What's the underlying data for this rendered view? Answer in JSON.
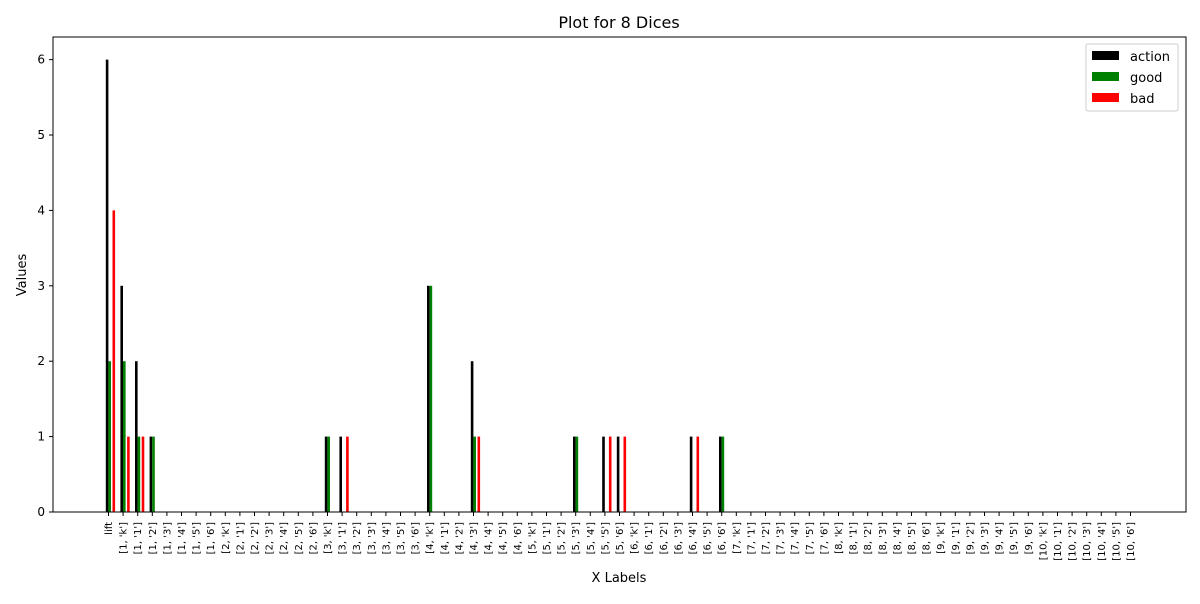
{
  "chart_data": {
    "type": "bar",
    "title": "Plot for 8 Dices",
    "xlabel": "X Labels",
    "ylabel": "Values",
    "ylim": [
      0,
      6.3
    ],
    "yticks": [
      0,
      1,
      2,
      3,
      4,
      5,
      6
    ],
    "grid": false,
    "legend_position": "top-right",
    "categories": [
      "lift",
      "[1, 'k']",
      "[1, '1']",
      "[1, '2']",
      "[1, '3']",
      "[1, '4']",
      "[1, '5']",
      "[1, '6']",
      "[2, 'k']",
      "[2, '1']",
      "[2, '2']",
      "[2, '3']",
      "[2, '4']",
      "[2, '5']",
      "[2, '6']",
      "[3, 'k']",
      "[3, '1']",
      "[3, '2']",
      "[3, '3']",
      "[3, '4']",
      "[3, '5']",
      "[3, '6']",
      "[4, 'k']",
      "[4, '1']",
      "[4, '2']",
      "[4, '3']",
      "[4, '4']",
      "[4, '5']",
      "[4, '6']",
      "[5, 'k']",
      "[5, '1']",
      "[5, '2']",
      "[5, '3']",
      "[5, '4']",
      "[5, '5']",
      "[5, '6']",
      "[6, 'k']",
      "[6, '1']",
      "[6, '2']",
      "[6, '3']",
      "[6, '4']",
      "[6, '5']",
      "[6, '6']",
      "[7, 'k']",
      "[7, '1']",
      "[7, '2']",
      "[7, '3']",
      "[7, '4']",
      "[7, '5']",
      "[7, '6']",
      "[8, 'k']",
      "[8, '1']",
      "[8, '2']",
      "[8, '3']",
      "[8, '4']",
      "[8, '5']",
      "[8, '6']",
      "[9, 'k']",
      "[9, '1']",
      "[9, '2']",
      "[9, '3']",
      "[9, '4']",
      "[9, '5']",
      "[9, '6']",
      "[10, 'k']",
      "[10, '1']",
      "[10, '2']",
      "[10, '3']",
      "[10, '4']",
      "[10, '5']",
      "[10, '6']"
    ],
    "series": [
      {
        "name": "action",
        "color": "#000000",
        "values": [
          6,
          3,
          2,
          1,
          0,
          0,
          0,
          0,
          0,
          0,
          0,
          0,
          0,
          0,
          0,
          1,
          1,
          0,
          0,
          0,
          0,
          0,
          3,
          0,
          0,
          2,
          0,
          0,
          0,
          0,
          0,
          0,
          1,
          0,
          1,
          1,
          0,
          0,
          0,
          0,
          1,
          0,
          1,
          0,
          0,
          0,
          0,
          0,
          0,
          0,
          0,
          0,
          0,
          0,
          0,
          0,
          0,
          0,
          0,
          0,
          0,
          0,
          0,
          0,
          0,
          0,
          0,
          0,
          0,
          0,
          0
        ]
      },
      {
        "name": "good",
        "color": "#008000",
        "values": [
          2,
          2,
          1,
          1,
          0,
          0,
          0,
          0,
          0,
          0,
          0,
          0,
          0,
          0,
          0,
          1,
          0,
          0,
          0,
          0,
          0,
          0,
          3,
          0,
          0,
          1,
          0,
          0,
          0,
          0,
          0,
          0,
          1,
          0,
          0,
          0,
          0,
          0,
          0,
          0,
          0,
          0,
          1,
          0,
          0,
          0,
          0,
          0,
          0,
          0,
          0,
          0,
          0,
          0,
          0,
          0,
          0,
          0,
          0,
          0,
          0,
          0,
          0,
          0,
          0,
          0,
          0,
          0,
          0,
          0,
          0
        ]
      },
      {
        "name": "bad",
        "color": "#ff0000",
        "values": [
          4,
          1,
          1,
          0,
          0,
          0,
          0,
          0,
          0,
          0,
          0,
          0,
          0,
          0,
          0,
          0,
          1,
          0,
          0,
          0,
          0,
          0,
          0,
          0,
          0,
          1,
          0,
          0,
          0,
          0,
          0,
          0,
          0,
          0,
          1,
          1,
          0,
          0,
          0,
          0,
          1,
          0,
          0,
          0,
          0,
          0,
          0,
          0,
          0,
          0,
          0,
          0,
          0,
          0,
          0,
          0,
          0,
          0,
          0,
          0,
          0,
          0,
          0,
          0,
          0,
          0,
          0,
          0,
          0,
          0,
          0
        ]
      }
    ]
  }
}
